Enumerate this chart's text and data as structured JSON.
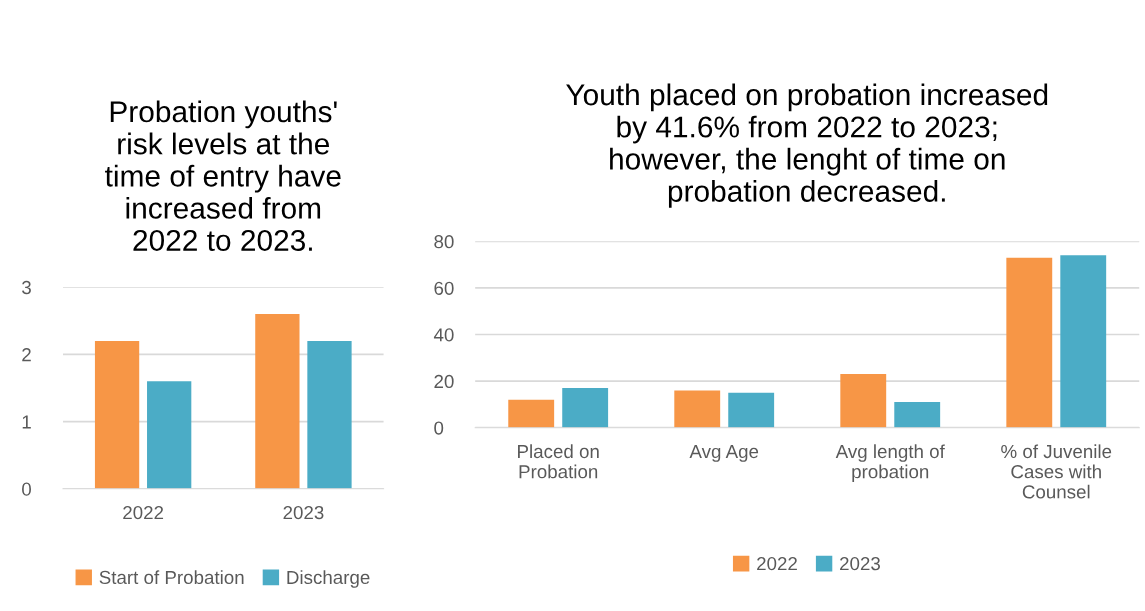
{
  "chart_data": [
    {
      "type": "bar",
      "title": "Probation youths'\nrisk levels at the\ntime of entry have\nincreased from\n2022 to 2023.",
      "categories": [
        "2022",
        "2023"
      ],
      "series": [
        {
          "name": "Start of Probation",
          "color": "#f79646",
          "values": [
            2.2,
            2.6
          ]
        },
        {
          "name": "Discharge",
          "color": "#4bacc6",
          "values": [
            1.6,
            2.2
          ]
        }
      ],
      "ylim": [
        0,
        3
      ],
      "yticks": [
        0,
        1,
        2,
        3
      ],
      "grid": "y",
      "legend": "bottom"
    },
    {
      "type": "bar",
      "title": "Youth placed on probation increased\nby 41.6% from 2022 to 2023;\nhowever, the lenght of time on\nprobation decreased.",
      "categories": [
        "Placed on\nProbation",
        "Avg Age",
        "Avg length of\nprobation",
        "% of Juvenile\nCases with\nCounsel"
      ],
      "series": [
        {
          "name": "2022",
          "color": "#f79646",
          "values": [
            12,
            16,
            23,
            73
          ]
        },
        {
          "name": "2023",
          "color": "#4bacc6",
          "values": [
            17,
            15,
            11,
            74
          ]
        }
      ],
      "ylim": [
        0,
        80
      ],
      "yticks": [
        0,
        20,
        40,
        60,
        80
      ],
      "grid": "y",
      "legend": "bottom"
    }
  ]
}
